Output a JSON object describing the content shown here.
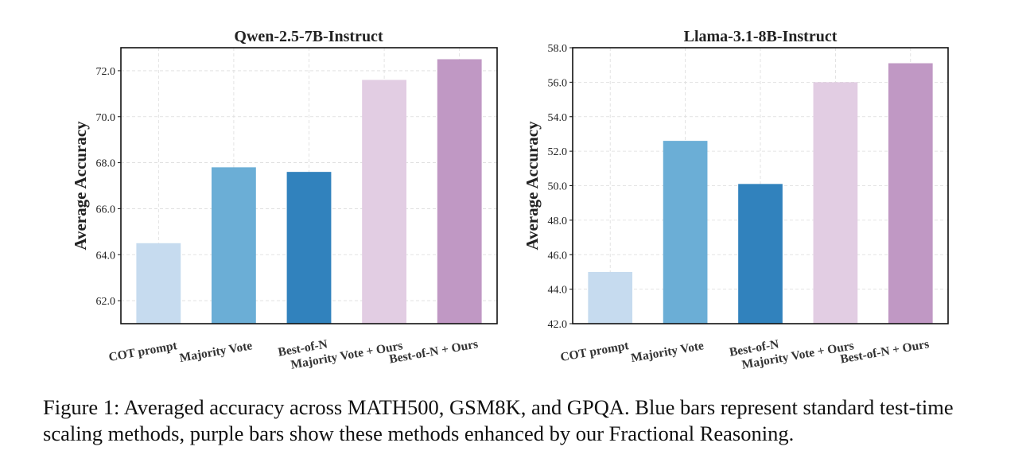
{
  "chart_data": [
    {
      "type": "bar",
      "title": "Qwen-2.5-7B-Instruct",
      "xlabel": "",
      "ylabel": "Average Accuracy",
      "categories": [
        "COT prompt",
        "Majority Vote",
        "Best-of-N",
        "Majority Vote + Ours",
        "Best-of-N + Ours"
      ],
      "values": [
        64.5,
        67.8,
        67.6,
        71.6,
        72.5
      ],
      "colors": [
        "#c6dbef",
        "#6baed6",
        "#3182bd",
        "#e2cde3",
        "#c098c4"
      ],
      "ylim": [
        61.0,
        73.0
      ],
      "yticks": [
        62.0,
        64.0,
        66.0,
        68.0,
        70.0,
        72.0
      ],
      "ytick_labels": [
        "62.0",
        "64.0",
        "66.0",
        "68.0",
        "70.0",
        "72.0"
      ],
      "grid": true
    },
    {
      "type": "bar",
      "title": "Llama-3.1-8B-Instruct",
      "xlabel": "",
      "ylabel": "Average Accuracy",
      "categories": [
        "COT prompt",
        "Majority Vote",
        "Best-of-N",
        "Majority Vote + Ours",
        "Best-of-N + Ours"
      ],
      "values": [
        45.0,
        52.6,
        50.1,
        56.0,
        57.1
      ],
      "colors": [
        "#c6dbef",
        "#6baed6",
        "#3182bd",
        "#e2cde3",
        "#c098c4"
      ],
      "ylim": [
        42.0,
        58.0
      ],
      "yticks": [
        42.0,
        44.0,
        46.0,
        48.0,
        50.0,
        52.0,
        54.0,
        56.0,
        58.0
      ],
      "ytick_labels": [
        "42.0",
        "44.0",
        "46.0",
        "48.0",
        "50.0",
        "52.0",
        "54.0",
        "56.0",
        "58.0"
      ],
      "grid": true
    }
  ],
  "caption": "Figure 1: Averaged accuracy across MATH500, GSM8K, and GPQA. Blue bars represent standard test-time scaling methods, purple bars show these methods enhanced by our Fractional Reasoning."
}
